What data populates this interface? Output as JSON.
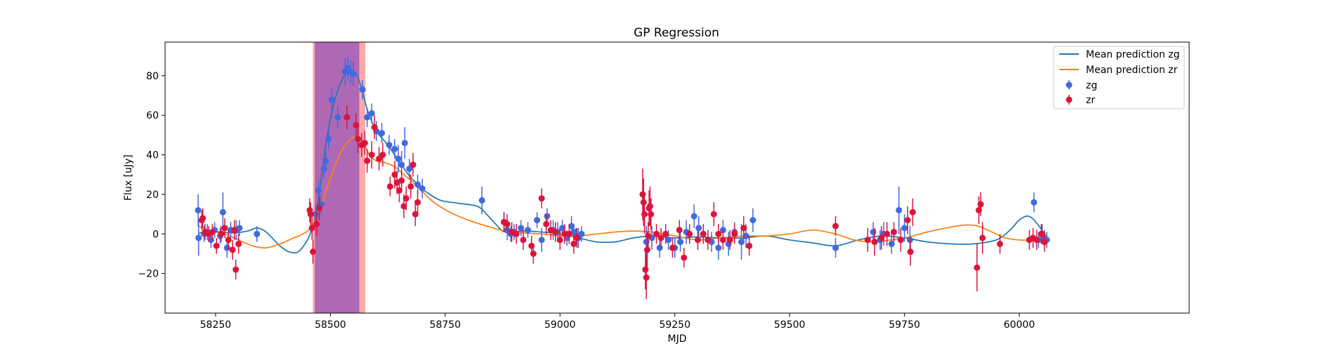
{
  "chart_data": {
    "type": "scatter",
    "title": "GP Regression",
    "xlabel": "MJD",
    "ylabel": "Flux [uJy]",
    "xlim": [
      58140,
      60370
    ],
    "ylim": [
      -40,
      97
    ],
    "xticks": [
      58250,
      58500,
      58750,
      59000,
      59250,
      59500,
      59750,
      60000
    ],
    "yticks": [
      -20,
      0,
      20,
      40,
      60,
      80
    ],
    "grid": false,
    "legend_position": "top-right",
    "colors": {
      "zg": "#4169e1",
      "zr": "#dc143c",
      "mean_zg": "#1f77b4",
      "mean_zr": "#ff7f0e"
    },
    "shaded_regions": [
      {
        "band": "zr",
        "x": [
          58462,
          58576
        ],
        "color": "#ff9999"
      },
      {
        "band": "zg",
        "x": [
          58466,
          58563
        ],
        "color": "#9b59b6"
      }
    ],
    "series": [
      {
        "name": "Mean prediction zg",
        "kind": "line",
        "color": "#1f77b4",
        "x": [
          58212,
          58230,
          58260,
          58290,
          58320,
          58340,
          58360,
          58390,
          58410,
          58430,
          58450,
          58460,
          58470,
          58480,
          58490,
          58500,
          58510,
          58520,
          58530,
          58540,
          58550,
          58560,
          58570,
          58580,
          58590,
          58600,
          58610,
          58625,
          58640,
          58655,
          58670,
          58690,
          58710,
          58740,
          58780,
          58820,
          58840,
          58860,
          58880,
          58920,
          58960,
          59000,
          59040,
          59080,
          59120,
          59160,
          59200,
          59250,
          59300,
          59350,
          59400,
          59450,
          59500,
          59550,
          59600,
          59650,
          59700,
          59750,
          59800,
          59850,
          59900,
          59950,
          59980,
          60000,
          60020,
          60040,
          60060
        ],
        "y": [
          0,
          1.5,
          1,
          0.5,
          1.5,
          3,
          1,
          -6,
          -9,
          -9,
          -3,
          3,
          12,
          28,
          45,
          58,
          68,
          75,
          80,
          82,
          82,
          79,
          72,
          63,
          57,
          52,
          49,
          45,
          40,
          35,
          30,
          25,
          21,
          17,
          15.5,
          14,
          10,
          5,
          1,
          1.5,
          1,
          0,
          -2,
          -4,
          -4,
          -2,
          -1,
          -2,
          -1.5,
          -2,
          -2,
          -1,
          -3,
          -4.5,
          -6,
          -3,
          -1,
          -2,
          -4,
          -5,
          -5,
          -3,
          2,
          7,
          9,
          5,
          -2
        ]
      },
      {
        "name": "Mean prediction zr",
        "kind": "line",
        "color": "#ff7f0e",
        "x": [
          58212,
          58240,
          58270,
          58300,
          58330,
          58360,
          58390,
          58420,
          58440,
          58460,
          58480,
          58500,
          58520,
          58540,
          58555,
          58570,
          58585,
          58600,
          58620,
          58640,
          58660,
          58690,
          58720,
          58760,
          58800,
          58840,
          58880,
          58920,
          58960,
          59000,
          59040,
          59080,
          59120,
          59160,
          59200,
          59250,
          59300,
          59350,
          59400,
          59450,
          59500,
          59550,
          59600,
          59640,
          59680,
          59720,
          59760,
          59800,
          59840,
          59880,
          59910,
          59940,
          59970,
          60000,
          60030,
          60060
        ],
        "y": [
          4,
          1.5,
          0,
          -3,
          -6,
          -7,
          -5,
          -2,
          0,
          4,
          15,
          28,
          40,
          47,
          49,
          47,
          40,
          37,
          36,
          34,
          30,
          24,
          17,
          11,
          7,
          4,
          1.5,
          0.5,
          0,
          -1,
          -1,
          0,
          1,
          1.5,
          1,
          -1,
          -3,
          -2,
          -1,
          -1,
          0,
          2,
          0,
          -3,
          -4,
          -3,
          -1.5,
          1,
          3,
          4.5,
          4,
          1,
          -2,
          -3,
          -3,
          -2
        ]
      },
      {
        "name": "zg",
        "kind": "errorbar",
        "color": "#4169e1",
        "x": [
          58212,
          58213,
          58225,
          58232,
          58240,
          58248,
          58260,
          58266,
          58275,
          58283,
          58295,
          58302,
          58340,
          58468,
          58474,
          58480,
          58486,
          58490,
          58496,
          58503,
          58516,
          58532,
          58538,
          58544,
          58550,
          58570,
          58580,
          58590,
          58600,
          58612,
          58628,
          58640,
          58648,
          58655,
          58662,
          58672,
          58690,
          58700,
          58830,
          58878,
          58885,
          58893,
          58900,
          58915,
          58930,
          58950,
          58960,
          58972,
          58985,
          58995,
          59005,
          59015,
          59025,
          59030,
          59035,
          59040,
          59047,
          59188,
          59200,
          59217,
          59236,
          59250,
          59262,
          59275,
          59292,
          59302,
          59312,
          59330,
          59345,
          59355,
          59367,
          59380,
          59395,
          59405,
          59420,
          59600,
          59682,
          59697,
          59705,
          59722,
          59738,
          59750,
          59762,
          60032,
          60042,
          60050,
          60055,
          60060
        ],
        "y": [
          12,
          -2,
          0,
          1,
          -3,
          2,
          -1,
          11,
          -7,
          2,
          2,
          3,
          0,
          10,
          22,
          15,
          33,
          37,
          48,
          68,
          59,
          82,
          84,
          82,
          81,
          73,
          59,
          61,
          52,
          51,
          45,
          43,
          38,
          35,
          46,
          33,
          25,
          23,
          17,
          6,
          2,
          0,
          1,
          3,
          2,
          7,
          -3,
          9,
          2,
          1,
          3,
          -2,
          4,
          1,
          -1,
          -2,
          0,
          -4,
          -2,
          -7,
          -3,
          -7,
          -4,
          1,
          9,
          3,
          0,
          -4,
          -7,
          2,
          -5,
          1,
          -4,
          -1,
          7,
          -7,
          1,
          -3,
          0,
          -5,
          12,
          3,
          -3,
          16,
          -3,
          0,
          -2,
          -3
        ],
        "err": [
          8,
          9,
          4,
          4,
          4,
          4,
          4,
          10,
          5,
          4,
          5,
          4,
          4,
          5,
          5,
          5,
          5,
          5,
          5,
          6,
          6,
          7,
          6,
          6,
          6,
          5,
          5,
          5,
          5,
          5,
          5,
          5,
          7,
          7,
          8,
          5,
          5,
          5,
          7,
          5,
          5,
          4,
          4,
          4,
          4,
          4,
          6,
          4,
          5,
          5,
          4,
          4,
          5,
          4,
          4,
          5,
          4,
          8,
          6,
          5,
          5,
          5,
          5,
          6,
          6,
          6,
          5,
          5,
          6,
          5,
          6,
          5,
          9,
          6,
          6,
          5,
          5,
          5,
          6,
          5,
          12,
          7,
          7,
          5,
          4,
          5,
          4,
          4
        ]
      },
      {
        "name": "zr",
        "kind": "errorbar",
        "color": "#dc143c",
        "x": [
          58220,
          58222,
          58227,
          58235,
          58243,
          58252,
          58262,
          58270,
          58278,
          58287,
          58291,
          58294,
          58300,
          58455,
          58457,
          58460,
          58462,
          58470,
          58476,
          58536,
          58556,
          58560,
          58568,
          58575,
          58580,
          58590,
          58596,
          58606,
          58614,
          58630,
          58640,
          58645,
          58650,
          58655,
          58660,
          58665,
          58675,
          58680,
          58685,
          58690,
          58878,
          58885,
          58895,
          58905,
          58920,
          58938,
          58942,
          58960,
          58970,
          58980,
          58990,
          59000,
          59010,
          59020,
          59030,
          59037,
          59180,
          59182,
          59184,
          59186,
          59188,
          59190,
          59192,
          59194,
          59196,
          59198,
          59210,
          59220,
          59230,
          59245,
          59260,
          59270,
          59282,
          59300,
          59312,
          59322,
          59335,
          59345,
          59355,
          59370,
          59380,
          59400,
          59412,
          59600,
          59670,
          59685,
          59700,
          59712,
          59727,
          59742,
          59757,
          59763,
          59768,
          59908,
          59912,
          59916,
          59920,
          59958,
          60022,
          60030,
          60038,
          60048,
          60055
        ],
        "y": [
          7,
          8,
          1,
          0,
          1,
          -6,
          0,
          3,
          -3,
          -8,
          2,
          -18,
          -5,
          12,
          10,
          3,
          -9,
          5,
          13,
          59,
          55,
          48,
          45,
          46,
          37,
          40,
          54,
          38,
          40,
          24,
          30,
          26,
          22,
          27,
          14,
          18,
          24,
          35,
          10,
          16,
          6,
          5,
          1,
          0,
          -3,
          -6,
          -10,
          18,
          5,
          2,
          1,
          -3,
          0,
          0,
          -5,
          -2,
          20,
          16,
          10,
          -18,
          -22,
          -8,
          -1,
          13,
          14,
          10,
          0,
          -2,
          0,
          -7,
          2,
          -12,
          0,
          -3,
          0,
          -3,
          10,
          0,
          -3,
          -3,
          0,
          3,
          -6,
          4,
          -3,
          -4,
          -2,
          0,
          1,
          -3,
          7,
          -9,
          11,
          -17,
          12,
          15,
          -2,
          -5,
          -3,
          -2,
          -3,
          0,
          -4
        ],
        "err": [
          5,
          5,
          4,
          4,
          4,
          4,
          4,
          5,
          5,
          5,
          5,
          5,
          5,
          6,
          6,
          6,
          6,
          6,
          6,
          6,
          6,
          7,
          6,
          6,
          6,
          7,
          6,
          6,
          6,
          5,
          7,
          6,
          6,
          6,
          6,
          6,
          6,
          6,
          6,
          6,
          5,
          5,
          5,
          5,
          5,
          5,
          5,
          5,
          5,
          5,
          5,
          5,
          5,
          5,
          5,
          5,
          13,
          12,
          10,
          10,
          11,
          9,
          7,
          9,
          10,
          8,
          5,
          5,
          5,
          5,
          5,
          5,
          5,
          5,
          5,
          5,
          6,
          5,
          5,
          5,
          5,
          6,
          5,
          5,
          6,
          7,
          6,
          6,
          5,
          6,
          7,
          7,
          7,
          12,
          7,
          6,
          8,
          5,
          5,
          5,
          5,
          5,
          5
        ]
      }
    ]
  }
}
